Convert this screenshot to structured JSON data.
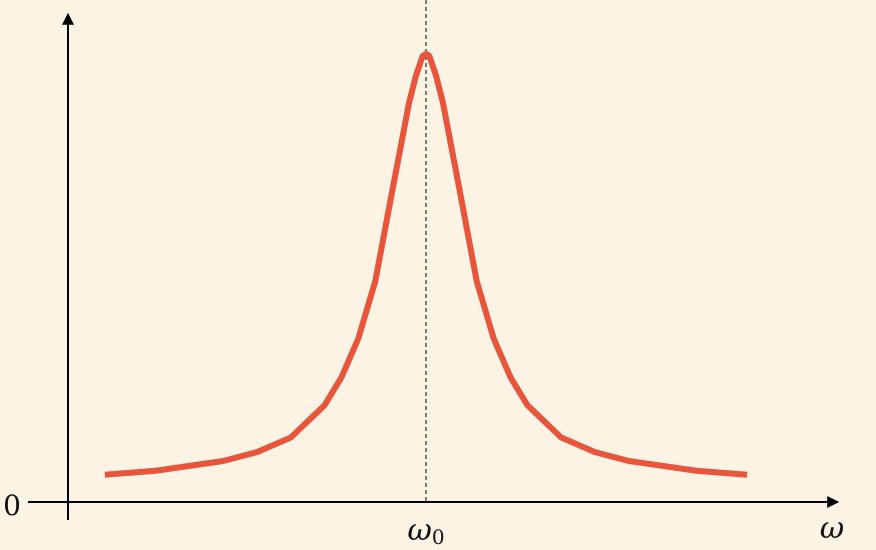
{
  "colors": {
    "background": "#fdf3e4",
    "curve": "#e8553a",
    "axis": "#000000"
  },
  "chart_data": {
    "type": "line",
    "title": "",
    "xlabel": "ω",
    "ylabel": "",
    "x_ticks": [
      {
        "x": 0,
        "label": "ω",
        "subscript": "0"
      }
    ],
    "y_ticks": [
      {
        "y": 0,
        "label": "0"
      }
    ],
    "reference_lines": [
      {
        "orientation": "vertical",
        "x": 0,
        "style": "dashed"
      }
    ],
    "xlim": [
      -1.0,
      1.0
    ],
    "ylim": [
      0.0,
      1.0
    ],
    "grid": false,
    "series": [
      {
        "color": "#e8553a",
        "x": [
          -0.95,
          -0.8,
          -0.6,
          -0.5,
          -0.4,
          -0.3,
          -0.25,
          -0.2,
          -0.15,
          -0.1,
          -0.07,
          -0.05,
          -0.03,
          -0.01,
          0.0,
          0.01,
          0.03,
          0.05,
          0.07,
          0.1,
          0.15,
          0.2,
          0.25,
          0.3,
          0.4,
          0.5,
          0.6,
          0.8,
          0.95
        ],
        "y": [
          0.03,
          0.039,
          0.061,
          0.081,
          0.114,
          0.187,
          0.25,
          0.338,
          0.467,
          0.67,
          0.79,
          0.87,
          0.93,
          0.975,
          0.98,
          0.975,
          0.93,
          0.87,
          0.79,
          0.67,
          0.467,
          0.338,
          0.25,
          0.187,
          0.114,
          0.081,
          0.061,
          0.039,
          0.03
        ]
      }
    ]
  }
}
